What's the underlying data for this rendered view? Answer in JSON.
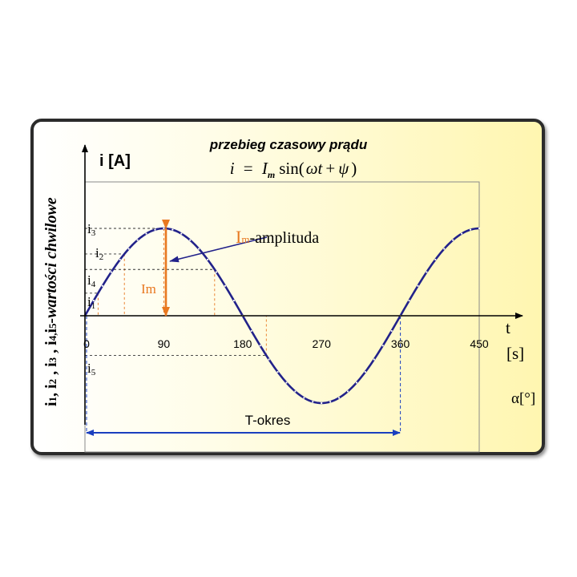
{
  "title": "przebieg czasowy prądu",
  "formula": {
    "lhs": "i",
    "eq": "=",
    "I": "I",
    "m_sub": "m",
    "func": "sin(",
    "omega_t": "ωt",
    "plus": "+",
    "psi": "ψ",
    "close": ")"
  },
  "y_axis_label": "i [A]",
  "side_label": {
    "i_part": "i",
    "n1": "1",
    "c1": ", i",
    "n2": "2",
    "c2": " , i",
    "n3": "3",
    "c3": " , i",
    "n4": "4,",
    "c4": "i",
    "n5": "5",
    "italic": "-wartości chwilowe"
  },
  "x_axis_label_t": "t",
  "x_axis_unit_s": "[s]",
  "x_axis_label_alpha": "α[°]",
  "x_ticks": [
    "0",
    "90",
    "180",
    "270",
    "360",
    "450"
  ],
  "instant_labels": [
    {
      "base": "i",
      "sub": "3"
    },
    {
      "base": "i",
      "sub": "2"
    },
    {
      "base": "i",
      "sub": "4"
    },
    {
      "base": "i",
      "sub": "1"
    },
    {
      "base": "i",
      "sub": "5"
    }
  ],
  "amplitude_label": {
    "I": "I",
    "m": "m",
    "text": "-amplituda"
  },
  "im_label": "Im",
  "period_label": "T-okres",
  "colors": {
    "curve": "#22228a",
    "orange": "#e87820",
    "period_arrow": "#1a3fbf",
    "axis": "#000000"
  },
  "chart_data": {
    "type": "line",
    "function": "sin",
    "x_unit": "degrees",
    "x_range": [
      0,
      450
    ],
    "y_range": [
      -1,
      1
    ],
    "x": [
      0,
      90,
      180,
      270,
      360,
      450
    ],
    "y": [
      0,
      1,
      0,
      -1,
      0,
      1
    ],
    "instantaneous_points": [
      {
        "name": "i1",
        "alpha_deg": 15
      },
      {
        "name": "i2",
        "alpha_deg": 45
      },
      {
        "name": "i3",
        "alpha_deg": 90
      },
      {
        "name": "i4",
        "alpha_deg": 148
      },
      {
        "name": "i5",
        "alpha_deg": 207
      }
    ],
    "period_deg": [
      0,
      360
    ]
  }
}
